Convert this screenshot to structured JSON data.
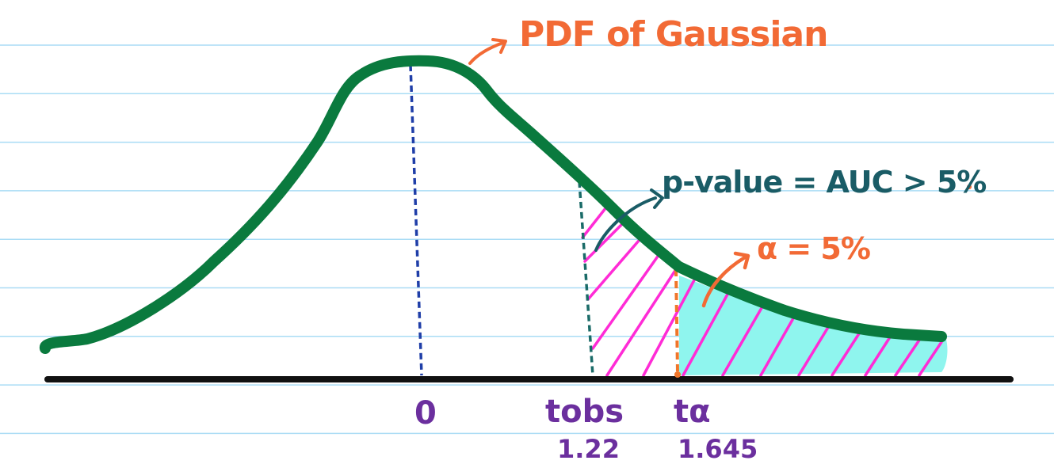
{
  "title": "PDF of Gaussian",
  "annotations": {
    "p_value": "p-value = AUC > 5%",
    "alpha": "α = 5%"
  },
  "axis_labels": {
    "zero": "0",
    "t_obs": "tobs",
    "t_obs_value": "1.22",
    "t_alpha": "tα",
    "t_alpha_value": "1.645"
  },
  "colors": {
    "notebook_line": "#a9dcf5",
    "curve": "#0a7a3e",
    "axis": "#111111",
    "mean_line": "#1f3ea8",
    "t_obs_line": "#1a6b68",
    "t_alpha_line": "#f0762a",
    "title": "#f26a35",
    "p_value_text": "#1a5c66",
    "alpha_text": "#f26a35",
    "axis_text": "#6b2f9e",
    "hatch": "#ff2bd6",
    "alpha_fill": "#8ff5ee"
  }
}
